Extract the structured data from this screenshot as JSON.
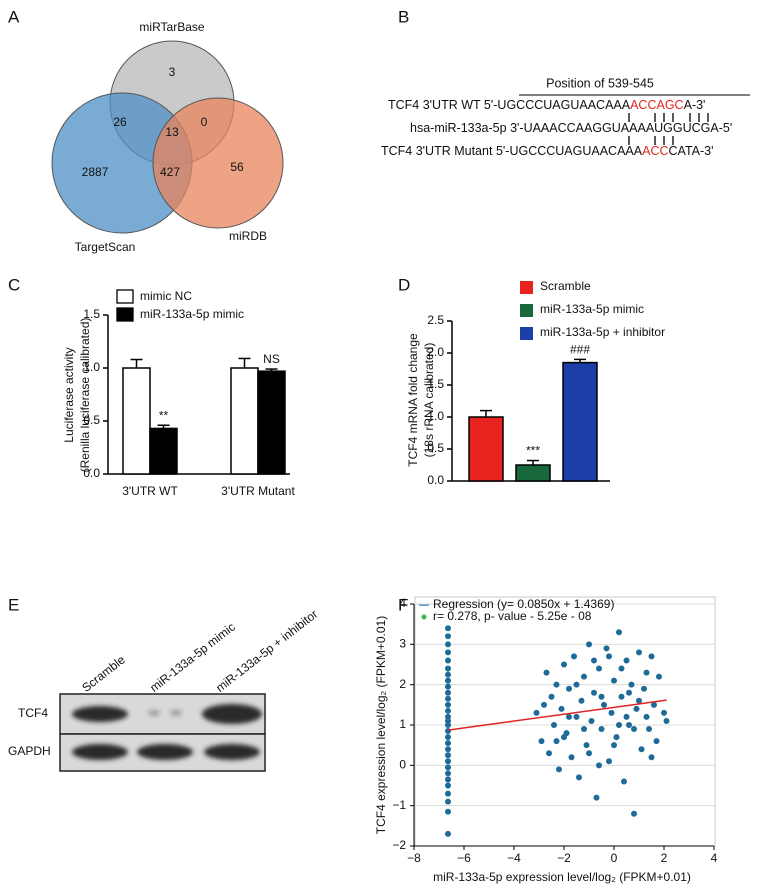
{
  "panel_labels": [
    "A",
    "B",
    "C",
    "D",
    "E",
    "F"
  ],
  "venn": {
    "sets": [
      {
        "name": "miRTarBase",
        "color": "#b8b8b8"
      },
      {
        "name": "TargetScan",
        "color": "#4d8fc6"
      },
      {
        "name": "miRDB",
        "color": "#e8845c"
      }
    ],
    "regions": [
      3,
      26,
      0,
      13,
      2887,
      427,
      56
    ]
  },
  "sequence": {
    "position_label": "Position of 539-545",
    "highlight_color": "#e3261e",
    "rows": [
      {
        "label": "TCF4 3'UTR WT",
        "seq": [
          "5'-UGCCCUAGUAACAAA",
          "ACCAGC",
          "A-3'"
        ]
      },
      {
        "label": "hsa-miR-133a-5p",
        "seq": [
          "3'-UAAACCAAGGUAAAAUGGUCGA-5'"
        ]
      },
      {
        "label": "TCF4 3'UTR Mutant",
        "seq": [
          "5'-UGCCCUAGUAACAAA",
          "ACC",
          "CATA-3'"
        ]
      }
    ]
  },
  "blot": {
    "lanes": [
      "Scramble",
      "miR-133a-5p mimic",
      "miR-133a-5p + inhibitor"
    ],
    "rows": [
      "TCF4",
      "GAPDH"
    ]
  },
  "chart_data": [
    {
      "type": "bar",
      "ylabel": [
        "Luciferase activity",
        "(Renilla luciferase calibrated)"
      ],
      "categories": [
        "3'UTR WT",
        "3'UTR Mutant"
      ],
      "series": [
        {
          "name": "mimic NC",
          "color": "#ffffff",
          "values": [
            1.0,
            1.0
          ],
          "errors": [
            0.08,
            0.09
          ]
        },
        {
          "name": "miR-133a-5p mimic",
          "color": "#000000",
          "values": [
            0.43,
            0.97
          ],
          "errors": [
            0.03,
            0.02
          ],
          "annotations": [
            "**",
            "NS"
          ]
        }
      ],
      "ylim": [
        0,
        1.5
      ],
      "yticks": [
        {
          "value": 0,
          "label": "0.0"
        },
        0.5,
        {
          "value": 1,
          "label": "1.0"
        },
        1.5
      ]
    },
    {
      "type": "bar",
      "ylabel": [
        "TCF4 mRNA fold change",
        "(18s rRNA calibrated)"
      ],
      "categories": [
        "Scramble",
        "miR-133a-5p mimic",
        "miR-133a-5p + inhibitor"
      ],
      "colors": [
        "#e8231f",
        "#17683a",
        "#1d3ea8"
      ],
      "values": [
        1.0,
        0.25,
        1.85
      ],
      "errors": [
        0.1,
        0.07,
        0.05
      ],
      "annotations": [
        null,
        "***",
        "###"
      ],
      "ylim": [
        0,
        2.5
      ],
      "yticks": [
        {
          "value": 0,
          "label": "0.0"
        },
        0.5,
        {
          "value": 1,
          "label": "1.0"
        },
        1.5,
        {
          "value": 2,
          "label": "2.0"
        },
        2.5
      ]
    },
    {
      "type": "scatter",
      "xlabel": "miR-133a-5p expression level/log₂ (FPKM+0.01)",
      "ylabel": "TCF4 expression level/log₂ (FPKM+0.01)",
      "color": "#1e6a99",
      "x": [
        -6.64,
        -6.64,
        -6.64,
        -6.64,
        -6.64,
        -6.64,
        -6.64,
        -6.64,
        -6.64,
        -6.64,
        -6.64,
        -6.64,
        -6.64,
        -6.64,
        -6.64,
        -6.64,
        -6.64,
        -6.64,
        -6.64,
        -6.64,
        -6.64,
        -6.64,
        -6.64,
        -6.64,
        -6.64,
        -6.64,
        -6.64,
        -6.64,
        -6.64,
        -6.64,
        -3.1,
        -2.9,
        -2.7,
        -2.6,
        -2.5,
        -2.4,
        -2.3,
        -2.2,
        -2.1,
        -2.0,
        -1.9,
        -1.8,
        -1.7,
        -1.6,
        -1.5,
        -1.4,
        -1.3,
        -1.2,
        -1.1,
        -1.0,
        -0.9,
        -0.8,
        -0.7,
        -0.6,
        -0.5,
        -0.4,
        -0.3,
        -0.2,
        -0.1,
        0.0,
        0.1,
        0.2,
        0.3,
        0.4,
        0.5,
        0.6,
        0.7,
        0.8,
        0.9,
        1.0,
        1.1,
        1.2,
        1.3,
        1.4,
        1.5,
        1.6,
        1.7,
        1.8,
        2.0,
        2.1,
        -2.8,
        -2.0,
        -1.5,
        -1.0,
        -0.5,
        0.0,
        0.5,
        1.0,
        -1.8,
        -0.8,
        0.3,
        0.8,
        1.3,
        -2.3,
        -1.2,
        -0.2,
        0.6,
        1.5,
        -0.6,
        0.2
      ],
      "y": [
        -1.7,
        -1.15,
        -0.9,
        -0.7,
        -0.5,
        -0.35,
        -0.2,
        -0.05,
        0.1,
        0.25,
        0.4,
        0.55,
        0.7,
        0.85,
        1.0,
        1.1,
        1.2,
        1.35,
        1.5,
        1.65,
        1.8,
        1.95,
        2.1,
        2.25,
        2.4,
        2.6,
        2.8,
        3.0,
        3.2,
        3.4,
        1.3,
        0.6,
        2.3,
        0.3,
        1.7,
        1.0,
        2.0,
        -0.1,
        1.4,
        2.5,
        0.8,
        1.9,
        0.2,
        2.7,
        1.2,
        -0.3,
        1.6,
        2.2,
        0.5,
        3.0,
        1.1,
        1.8,
        -0.8,
        2.4,
        0.9,
        1.5,
        2.9,
        0.1,
        1.3,
        2.1,
        0.7,
        3.3,
        1.7,
        -0.4,
        2.6,
        1.0,
        2.0,
        -1.2,
        1.4,
        2.8,
        0.4,
        1.9,
        2.3,
        0.9,
        2.7,
        1.5,
        0.6,
        2.2,
        1.3,
        1.1,
        1.5,
        0.7,
        2.0,
        0.3,
        1.7,
        0.5,
        1.2,
        1.6,
        1.2,
        2.6,
        2.4,
        0.9,
        1.2,
        0.6,
        0.9,
        2.7,
        1.8,
        0.2,
        0.0,
        1.0
      ],
      "regression": {
        "name": "Regression (y= 0.0850x + 1.4369)",
        "color": "#e02424",
        "x": [
          -6.64,
          2.1
        ],
        "y": [
          0.8725,
          1.6154
        ]
      },
      "stat_label": "r= 0.278, p- value - 5.25e - 08",
      "xlim": [
        -8,
        4
      ],
      "xticks": [
        {
          "value": -8,
          "label": "−8"
        },
        {
          "value": -6,
          "label": "−6"
        },
        {
          "value": -4,
          "label": "−4"
        },
        {
          "value": -2,
          "label": "−2"
        },
        0,
        2,
        4
      ],
      "ylim": [
        -2,
        4
      ],
      "yticks": [
        {
          "value": -2,
          "label": "−2"
        },
        {
          "value": -1,
          "label": "−1"
        },
        0,
        1,
        2,
        3,
        4
      ],
      "grid": true
    }
  ]
}
